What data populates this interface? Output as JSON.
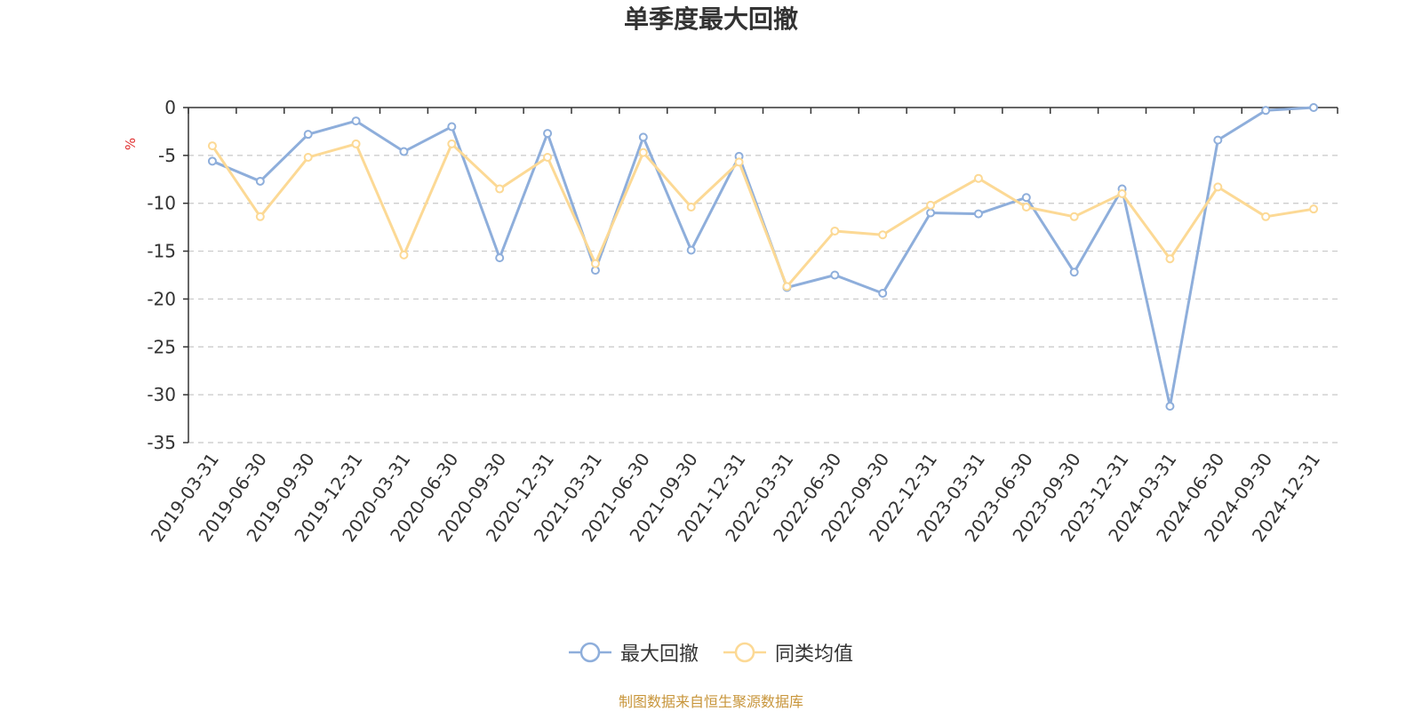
{
  "chart_data": {
    "type": "line",
    "title": "单季度最大回撤",
    "ylabel": "%",
    "ylim": [
      -35,
      0
    ],
    "yticks": [
      0,
      -5,
      -10,
      -15,
      -20,
      -25,
      -30,
      -35
    ],
    "grid": true,
    "legend_position": "bottom",
    "categories": [
      "2019-03-31",
      "2019-06-30",
      "2019-09-30",
      "2019-12-31",
      "2020-03-31",
      "2020-06-30",
      "2020-09-30",
      "2020-12-31",
      "2021-03-31",
      "2021-06-30",
      "2021-09-30",
      "2021-12-31",
      "2022-03-31",
      "2022-06-30",
      "2022-09-30",
      "2022-12-31",
      "2023-03-31",
      "2023-06-30",
      "2023-09-30",
      "2023-12-31",
      "2024-03-31",
      "2024-06-30",
      "2024-09-30",
      "2024-12-31"
    ],
    "series": [
      {
        "name": "最大回撤",
        "color": "#8eaedb",
        "values": [
          -5.6,
          -7.7,
          -2.8,
          -1.4,
          -4.6,
          -2.0,
          -15.7,
          -2.7,
          -17.0,
          -3.1,
          -14.9,
          -5.1,
          -18.8,
          -17.5,
          -19.4,
          -11.0,
          -11.1,
          -9.4,
          -17.2,
          -8.5,
          -31.2,
          -3.4,
          -0.3,
          0.0
        ]
      },
      {
        "name": "同类均值",
        "color": "#fcd995",
        "values": [
          -4.0,
          -11.4,
          -5.2,
          -3.8,
          -15.4,
          -3.8,
          -8.5,
          -5.2,
          -16.3,
          -4.7,
          -10.4,
          -5.7,
          -18.7,
          -12.9,
          -13.3,
          -10.2,
          -7.4,
          -10.4,
          -11.4,
          -9.0,
          -15.8,
          -8.3,
          -11.4,
          -10.6
        ]
      }
    ]
  },
  "footer": {
    "source": "制图数据来自恒生聚源数据库"
  }
}
